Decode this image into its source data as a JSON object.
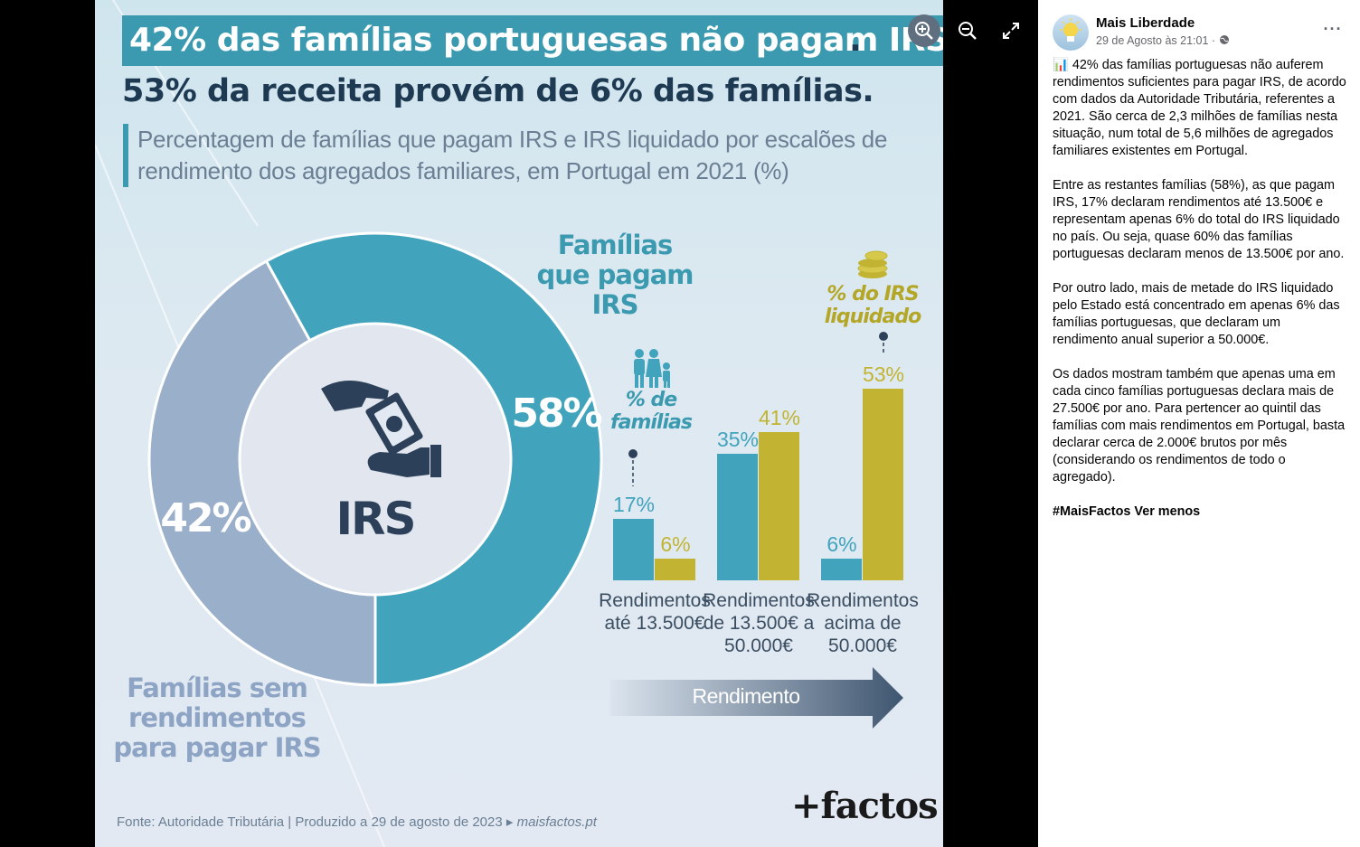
{
  "infographic": {
    "title_line1": "42% das famílias portuguesas não pagam IRS",
    "title_period": ".",
    "title_line2": "53% da receita provém de 6% das famílias.",
    "subtitle": "Percentagem de famílias que pagam IRS e IRS liquidado por escalões de rendimento dos agregados familiares, em Portugal em 2021 (%)",
    "donut_center_label": "IRS",
    "label_pay": "Famílias que pagam IRS",
    "label_no_pay": "Famílias sem rendimentos para pagar IRS",
    "legend_families": "% de famílias",
    "legend_irs": "% do IRS liquidado",
    "income_arrow_label": "Rendimento",
    "source": "Fonte: Autoridade Tributária  |  Produzido a 29 de agosto de 2023",
    "site": "maisfactos.pt",
    "logo": "+factos",
    "colors": {
      "teal": "#42a3bd",
      "gold": "#c2b432",
      "slate": "#9aafc9",
      "navy": "#2c4159"
    }
  },
  "chart_data": [
    {
      "type": "pie",
      "title": "",
      "labels": [
        "Famílias que pagam IRS",
        "Famílias sem rendimentos para pagar IRS"
      ],
      "values": [
        58,
        42
      ],
      "value_labels": [
        "58%",
        "42%"
      ]
    },
    {
      "type": "bar",
      "categories": [
        "Rendimentos até 13.500€",
        "Rendimentos de 13.500€ a 50.000€",
        "Rendimentos acima de 50.000€"
      ],
      "series": [
        {
          "name": "% de famílias",
          "values": [
            17,
            35,
            6
          ],
          "labels": [
            "17%",
            "35%",
            "6%"
          ]
        },
        {
          "name": "% do IRS liquidado",
          "values": [
            6,
            41,
            53
          ],
          "labels": [
            "6%",
            "41%",
            "53%"
          ]
        }
      ],
      "xlabel": "Rendimento"
    }
  ],
  "viewer": {
    "zoom_in": "zoom-in",
    "zoom_out": "zoom-out",
    "fullscreen": "fullscreen"
  },
  "post": {
    "page_name": "Mais Liberdade",
    "timestamp": "29 de Agosto às 21:01 ·",
    "more_label": "···",
    "paragraphs": [
      "📊 42% das famílias portuguesas não auferem rendimentos suficientes para pagar IRS, de acordo com dados da Autoridade Tributária, referentes a 2021. São cerca de 2,3 milhões de famílias nesta situação, num total de 5,6 milhões de agregados familiares existentes em Portugal.",
      "Entre as restantes famílias (58%), as que pagam IRS, 17% declaram rendimentos até 13.500€ e representam apenas 6% do total do IRS liquidado no país. Ou seja, quase 60% das famílias portuguesas declaram menos de 13.500€ por ano.",
      "Por outro lado, mais de metade do IRS liquidado pelo Estado está concentrado em apenas 6% das famílias portuguesas, que declaram um rendimento anual superior a 50.000€.",
      "Os dados mostram também que apenas uma em cada cinco famílias portuguesas declara mais de 27.500€ por ano. Para pertencer ao quintil das famílias com mais rendimentos em Portugal, basta declarar cerca de 2.000€ brutos por mês (considerando os rendimentos de todo o agregado)."
    ],
    "hashtag": "#MaisFactos",
    "see_less": "Ver menos"
  }
}
